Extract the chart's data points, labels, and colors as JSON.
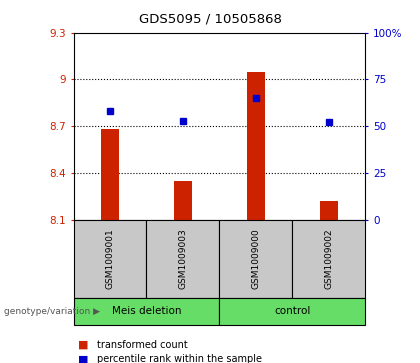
{
  "title": "GDS5095 / 10505868",
  "samples": [
    "GSM1009001",
    "GSM1009003",
    "GSM1009000",
    "GSM1009002"
  ],
  "groups": [
    "Meis deletion",
    "Meis deletion",
    "control",
    "control"
  ],
  "group_labels": [
    "Meis deletion",
    "control"
  ],
  "bar_values": [
    8.68,
    8.35,
    9.05,
    8.22
  ],
  "dot_values": [
    58,
    53,
    65,
    52
  ],
  "bar_bottom": 8.1,
  "ylim_left": [
    8.1,
    9.3
  ],
  "ylim_right": [
    0,
    100
  ],
  "yticks_left": [
    8.1,
    8.4,
    8.7,
    9.0,
    9.3
  ],
  "ytick_labels_left": [
    "8.1",
    "8.4",
    "8.7",
    "9",
    "9.3"
  ],
  "yticks_right": [
    0,
    25,
    50,
    75,
    100
  ],
  "ytick_labels_right": [
    "0",
    "25",
    "50",
    "75",
    "100%"
  ],
  "bar_color": "#CC2200",
  "dot_color": "#0000CC",
  "sample_box_color": "#C8C8C8",
  "group_box_color": "#66DD66",
  "plot_bg": "#FFFFFF",
  "legend_bar_label": "transformed count",
  "legend_dot_label": "percentile rank within the sample",
  "genotype_label": "genotype/variation"
}
